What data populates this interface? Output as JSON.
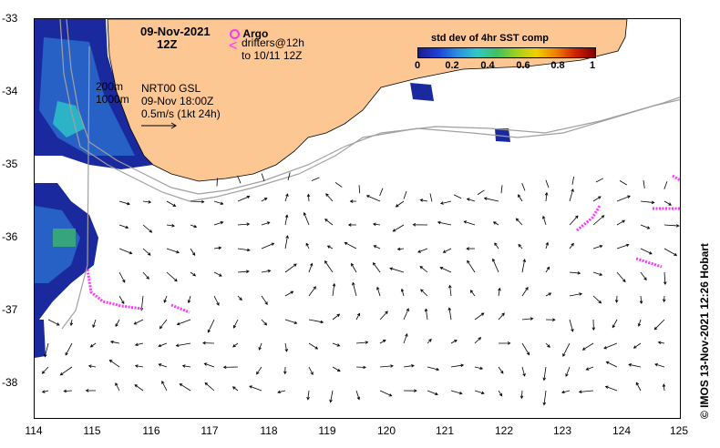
{
  "map": {
    "date_line": "09-Nov-2021",
    "time_line": "12Z",
    "legend_argo": "Argo",
    "legend_drifters_line1": "drifters@12h",
    "legend_drifters_line2": "to 10/11 12Z",
    "contour_200": "200m",
    "contour_1000": "1000m",
    "product_line1": "NRT00 GSL",
    "product_line2": "09-Nov 18:00Z",
    "product_line3": "0.5m/s (1kt 24h)",
    "credit": "© IMOS 13-Nov-2021 12:26 Hobart",
    "colorbar_title": "std dev of 4hr SST comp",
    "colorbar_ticks": [
      "0",
      "0.2",
      "0.4",
      "0.6",
      "0.8",
      "1"
    ],
    "x_ticks": [
      "114",
      "115",
      "116",
      "117",
      "118",
      "119",
      "120",
      "121",
      "122",
      "123",
      "124",
      "125"
    ],
    "y_ticks": [
      "-33",
      "-34",
      "-35",
      "-36",
      "-37",
      "-38"
    ],
    "colors": {
      "land": "#fcc793",
      "drifter": "#ff33ff",
      "sst_low": "#1a2a9e",
      "sst_mid": "#2a8fe0",
      "contour": "#a0a0a0"
    },
    "x_range": [
      114,
      125
    ],
    "y_range": [
      -38.5,
      -33
    ]
  }
}
